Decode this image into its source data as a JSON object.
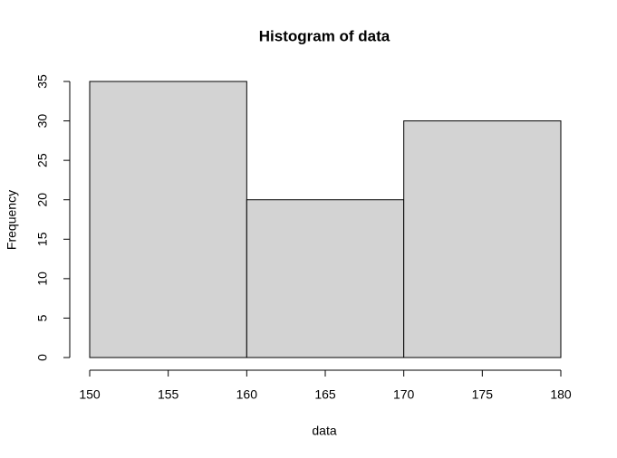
{
  "chart_data": {
    "type": "histogram",
    "title": "Histogram of data",
    "xlabel": "data",
    "ylabel": "Frequency",
    "bins": [
      150,
      160,
      170,
      180
    ],
    "counts": [
      35,
      20,
      30
    ],
    "color": "#d3d3d3",
    "xlim": [
      150,
      180
    ],
    "ylim": [
      0,
      35
    ],
    "xticks": [
      150,
      155,
      160,
      165,
      170,
      175,
      180
    ],
    "yticks": [
      0,
      5,
      10,
      15,
      20,
      25,
      30,
      35
    ]
  }
}
